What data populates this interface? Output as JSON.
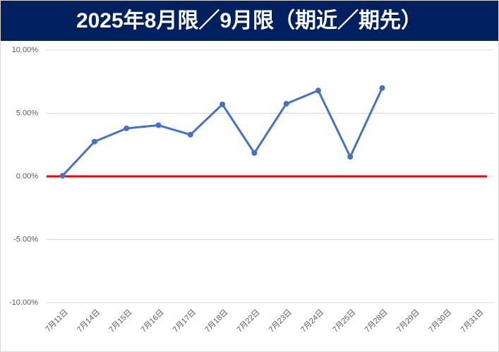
{
  "chart_data": {
    "type": "line",
    "title": "2025年8月限／9月限（期近／期先）",
    "categories": [
      "7月11日",
      "7月14日",
      "7月15日",
      "7月16日",
      "7月17日",
      "7月18日",
      "7月22日",
      "7月23日",
      "7月24日",
      "7月25日",
      "7月28日",
      "7月29日",
      "7月30日",
      "7月31日"
    ],
    "values": [
      0.05,
      2.75,
      3.8,
      4.05,
      3.3,
      5.7,
      1.85,
      5.75,
      6.8,
      1.55,
      7.0,
      null,
      null,
      null
    ],
    "color": "#4472c4",
    "reference_line": {
      "value": 0,
      "color": "#ff0000"
    },
    "ylim": [
      -10,
      10
    ],
    "yticks": [
      {
        "value": -10,
        "label": "-10.00%"
      },
      {
        "value": -5,
        "label": "-5.00%"
      },
      {
        "value": 0,
        "label": "0.00%"
      },
      {
        "value": 5,
        "label": "5.00%"
      },
      {
        "value": 10,
        "label": "10.00%"
      }
    ],
    "grid": true
  }
}
